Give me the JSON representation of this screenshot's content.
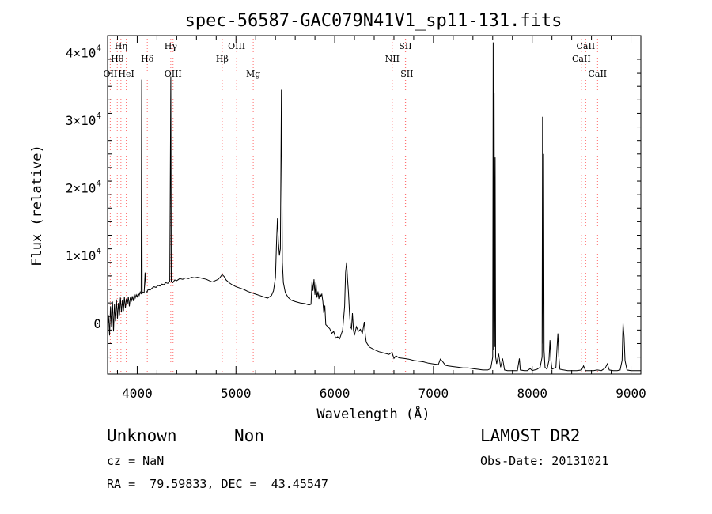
{
  "chart_data": {
    "type": "line",
    "title": "spec-56587-GAC079N41V1_sp11-131.fits",
    "xlabel": "Wavelength (Å)",
    "ylabel": "Flux (relative)",
    "xlim": [
      3700,
      9100
    ],
    "ylim": [
      -7500,
      42500
    ],
    "xticks": [
      4000,
      5000,
      6000,
      7000,
      8000,
      9000
    ],
    "yticks": [
      {
        "value": 0,
        "mantissa": "0",
        "exp": ""
      },
      {
        "value": 10000,
        "mantissa": "1×10",
        "exp": "4"
      },
      {
        "value": 20000,
        "mantissa": "2×10",
        "exp": "4"
      },
      {
        "value": 30000,
        "mantissa": "3×10",
        "exp": "4"
      },
      {
        "value": 40000,
        "mantissa": "4×10",
        "exp": "4"
      }
    ],
    "grid": false,
    "line_color": "#000000",
    "marker_color": "#ff6a6a",
    "spectral_lines": [
      {
        "label": "OII",
        "wavelength": 3727,
        "row": 3
      },
      {
        "label": "Hη",
        "wavelength": 3835,
        "row": 1
      },
      {
        "label": "Hθ",
        "wavelength": 3798,
        "row": 2
      },
      {
        "label": "HeI",
        "wavelength": 3889,
        "row": 3
      },
      {
        "label": "Hδ",
        "wavelength": 4102,
        "row": 2
      },
      {
        "label": "Hγ",
        "wavelength": 4340,
        "row": 1
      },
      {
        "label": "OIII",
        "wavelength": 4363,
        "row": 3
      },
      {
        "label": "Hβ",
        "wavelength": 4861,
        "row": 2
      },
      {
        "label": "OIII",
        "wavelength": 5007,
        "row": 1
      },
      {
        "label": "Mg",
        "wavelength": 5175,
        "row": 3
      },
      {
        "label": "NII",
        "wavelength": 6583,
        "row": 2
      },
      {
        "label": "SII",
        "wavelength": 6716,
        "row": 1
      },
      {
        "label": "SII",
        "wavelength": 6731,
        "row": 3
      },
      {
        "label": "CaII",
        "wavelength": 8498,
        "row": 2
      },
      {
        "label": "CaII",
        "wavelength": 8542,
        "row": 1
      },
      {
        "label": "CaII",
        "wavelength": 8662,
        "row": 3
      }
    ],
    "series": [
      {
        "points": [
          [
            3700,
            -1000
          ],
          [
            3710,
            1200
          ],
          [
            3720,
            -1800
          ],
          [
            3730,
            2500
          ],
          [
            3740,
            -500
          ],
          [
            3750,
            3200
          ],
          [
            3760,
            -1200
          ],
          [
            3770,
            2800
          ],
          [
            3780,
            300
          ],
          [
            3790,
            3500
          ],
          [
            3800,
            700
          ],
          [
            3810,
            3000
          ],
          [
            3820,
            1200
          ],
          [
            3830,
            3800
          ],
          [
            3840,
            1600
          ],
          [
            3850,
            3400
          ],
          [
            3860,
            1800
          ],
          [
            3870,
            3900
          ],
          [
            3880,
            2200
          ],
          [
            3890,
            3600
          ],
          [
            3900,
            2800
          ],
          [
            3910,
            3900
          ],
          [
            3920,
            2500
          ],
          [
            3930,
            3800
          ],
          [
            3940,
            3200
          ],
          [
            3950,
            4000
          ],
          [
            3960,
            3300
          ],
          [
            3970,
            4300
          ],
          [
            3980,
            3700
          ],
          [
            3990,
            4200
          ],
          [
            4000,
            3900
          ],
          [
            4010,
            4400
          ],
          [
            4020,
            4100
          ],
          [
            4030,
            4600
          ],
          [
            4040,
            4300
          ],
          [
            4045,
            36000
          ],
          [
            4050,
            4400
          ],
          [
            4060,
            4600
          ],
          [
            4070,
            4500
          ],
          [
            4080,
            7500
          ],
          [
            4090,
            4700
          ],
          [
            4100,
            4600
          ],
          [
            4110,
            5000
          ],
          [
            4130,
            4900
          ],
          [
            4150,
            5200
          ],
          [
            4170,
            5400
          ],
          [
            4190,
            5300
          ],
          [
            4210,
            5600
          ],
          [
            4230,
            5500
          ],
          [
            4250,
            5800
          ],
          [
            4270,
            5700
          ],
          [
            4290,
            6000
          ],
          [
            4310,
            5900
          ],
          [
            4330,
            6200
          ],
          [
            4340,
            36500
          ],
          [
            4345,
            6200
          ],
          [
            4360,
            6000
          ],
          [
            4380,
            6400
          ],
          [
            4400,
            6300
          ],
          [
            4430,
            6600
          ],
          [
            4460,
            6500
          ],
          [
            4490,
            6700
          ],
          [
            4520,
            6600
          ],
          [
            4550,
            6800
          ],
          [
            4580,
            6700
          ],
          [
            4610,
            6800
          ],
          [
            4640,
            6700
          ],
          [
            4670,
            6600
          ],
          [
            4700,
            6500
          ],
          [
            4730,
            6300
          ],
          [
            4760,
            6100
          ],
          [
            4790,
            6300
          ],
          [
            4820,
            6500
          ],
          [
            4840,
            6800
          ],
          [
            4860,
            7200
          ],
          [
            4880,
            6900
          ],
          [
            4900,
            6400
          ],
          [
            4930,
            6000
          ],
          [
            4960,
            5700
          ],
          [
            5000,
            5400
          ],
          [
            5040,
            5200
          ],
          [
            5080,
            5000
          ],
          [
            5120,
            4700
          ],
          [
            5160,
            4500
          ],
          [
            5200,
            4300
          ],
          [
            5240,
            4100
          ],
          [
            5280,
            3900
          ],
          [
            5320,
            3700
          ],
          [
            5360,
            4100
          ],
          [
            5380,
            4800
          ],
          [
            5400,
            6800
          ],
          [
            5410,
            11500
          ],
          [
            5420,
            15500
          ],
          [
            5430,
            12000
          ],
          [
            5440,
            10000
          ],
          [
            5450,
            11000
          ],
          [
            5460,
            34500
          ],
          [
            5470,
            9000
          ],
          [
            5480,
            6000
          ],
          [
            5500,
            4500
          ],
          [
            5530,
            3800
          ],
          [
            5560,
            3400
          ],
          [
            5600,
            3200
          ],
          [
            5650,
            3000
          ],
          [
            5700,
            2900
          ],
          [
            5740,
            2700
          ],
          [
            5760,
            2800
          ],
          [
            5770,
            6200
          ],
          [
            5780,
            4800
          ],
          [
            5790,
            6500
          ],
          [
            5800,
            4200
          ],
          [
            5810,
            6100
          ],
          [
            5820,
            3800
          ],
          [
            5830,
            4700
          ],
          [
            5840,
            3600
          ],
          [
            5850,
            4400
          ],
          [
            5860,
            4000
          ],
          [
            5870,
            4300
          ],
          [
            5880,
            3200
          ],
          [
            5890,
            1500
          ],
          [
            5900,
            2600
          ],
          [
            5910,
            -200
          ],
          [
            5930,
            -500
          ],
          [
            5950,
            -800
          ],
          [
            5970,
            -1500
          ],
          [
            5990,
            -1200
          ],
          [
            6010,
            -2200
          ],
          [
            6030,
            -2000
          ],
          [
            6050,
            -2300
          ],
          [
            6080,
            -1000
          ],
          [
            6100,
            2500
          ],
          [
            6110,
            7500
          ],
          [
            6120,
            9000
          ],
          [
            6130,
            6500
          ],
          [
            6140,
            4500
          ],
          [
            6150,
            1500
          ],
          [
            6160,
            -500
          ],
          [
            6170,
            -800
          ],
          [
            6180,
            1500
          ],
          [
            6190,
            -1000
          ],
          [
            6200,
            -1800
          ],
          [
            6220,
            -500
          ],
          [
            6240,
            -1200
          ],
          [
            6260,
            -900
          ],
          [
            6280,
            -1500
          ],
          [
            6300,
            200
          ],
          [
            6310,
            -1800
          ],
          [
            6320,
            -2800
          ],
          [
            6350,
            -3500
          ],
          [
            6400,
            -3900
          ],
          [
            6450,
            -4200
          ],
          [
            6500,
            -4400
          ],
          [
            6550,
            -4600
          ],
          [
            6580,
            -4300
          ],
          [
            6600,
            -5200
          ],
          [
            6620,
            -4800
          ],
          [
            6650,
            -5100
          ],
          [
            6700,
            -5200
          ],
          [
            6750,
            -5300
          ],
          [
            6800,
            -5500
          ],
          [
            6850,
            -5600
          ],
          [
            6900,
            -5700
          ],
          [
            6950,
            -5900
          ],
          [
            7000,
            -6000
          ],
          [
            7050,
            -6100
          ],
          [
            7070,
            -5300
          ],
          [
            7090,
            -5600
          ],
          [
            7120,
            -6200
          ],
          [
            7150,
            -6300
          ],
          [
            7200,
            -6400
          ],
          [
            7250,
            -6500
          ],
          [
            7300,
            -6600
          ],
          [
            7350,
            -6600
          ],
          [
            7400,
            -6700
          ],
          [
            7450,
            -6800
          ],
          [
            7500,
            -6900
          ],
          [
            7550,
            -6900
          ],
          [
            7580,
            -6700
          ],
          [
            7600,
            -5000
          ],
          [
            7605,
            41500
          ],
          [
            7610,
            -4000
          ],
          [
            7615,
            34000
          ],
          [
            7620,
            -3500
          ],
          [
            7625,
            24500
          ],
          [
            7630,
            -5000
          ],
          [
            7640,
            -6000
          ],
          [
            7660,
            -4500
          ],
          [
            7680,
            -6500
          ],
          [
            7700,
            -5200
          ],
          [
            7720,
            -6900
          ],
          [
            7750,
            -7000
          ],
          [
            7800,
            -7000
          ],
          [
            7850,
            -7000
          ],
          [
            7870,
            -5200
          ],
          [
            7880,
            -6900
          ],
          [
            7920,
            -7000
          ],
          [
            7950,
            -7000
          ],
          [
            7980,
            -6700
          ],
          [
            8000,
            -7000
          ],
          [
            8050,
            -6800
          ],
          [
            8080,
            -6500
          ],
          [
            8100,
            -5000
          ],
          [
            8105,
            30500
          ],
          [
            8110,
            -3000
          ],
          [
            8115,
            25000
          ],
          [
            8120,
            -4000
          ],
          [
            8130,
            -6500
          ],
          [
            8150,
            -6800
          ],
          [
            8170,
            -5500
          ],
          [
            8180,
            -2500
          ],
          [
            8190,
            -5500
          ],
          [
            8200,
            -6800
          ],
          [
            8240,
            -6500
          ],
          [
            8250,
            -4000
          ],
          [
            8260,
            -1500
          ],
          [
            8270,
            -5000
          ],
          [
            8280,
            -6800
          ],
          [
            8320,
            -6900
          ],
          [
            8360,
            -7000
          ],
          [
            8400,
            -7000
          ],
          [
            8450,
            -7000
          ],
          [
            8500,
            -6900
          ],
          [
            8520,
            -6300
          ],
          [
            8540,
            -7000
          ],
          [
            8580,
            -7000
          ],
          [
            8620,
            -7000
          ],
          [
            8660,
            -6900
          ],
          [
            8700,
            -7000
          ],
          [
            8740,
            -6600
          ],
          [
            8760,
            -6000
          ],
          [
            8780,
            -6900
          ],
          [
            8820,
            -7000
          ],
          [
            8860,
            -7000
          ],
          [
            8890,
            -6900
          ],
          [
            8910,
            -5500
          ],
          [
            8920,
            0
          ],
          [
            8930,
            -2000
          ],
          [
            8940,
            -5500
          ],
          [
            8960,
            -6900
          ],
          [
            9000,
            -7000
          ],
          [
            9050,
            -7000
          ],
          [
            9100,
            -7000
          ]
        ]
      }
    ]
  },
  "footer": {
    "object_class": "Unknown",
    "object_subclass": "Non",
    "redshift": "cz = NaN",
    "coords": "RA =  79.59833, DEC =  43.45547",
    "survey": "LAMOST DR2",
    "obs_date": "Obs-Date: 20131021"
  }
}
